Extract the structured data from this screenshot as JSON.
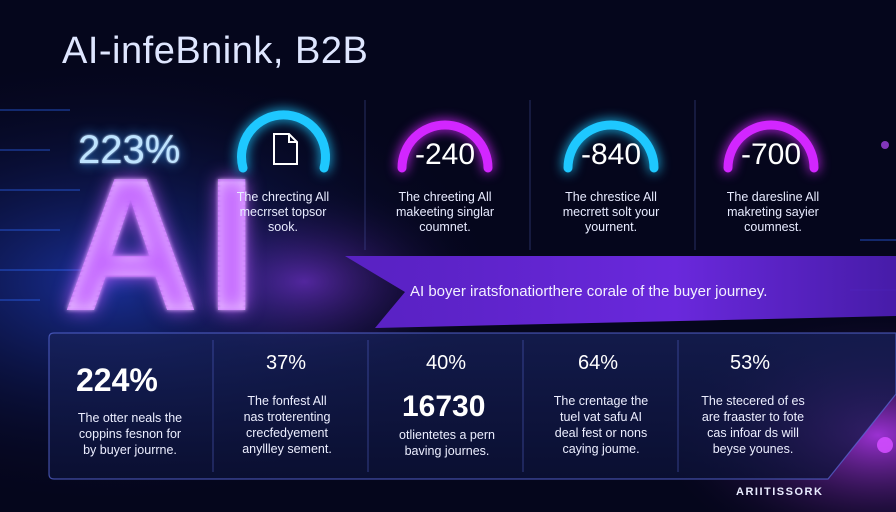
{
  "title": "AI-infeBnink, B2B",
  "hero": {
    "percent": "223%",
    "letters": "AI"
  },
  "gauges": [
    {
      "value": "",
      "icon": "document-icon",
      "color": "#1ec8ff",
      "caption": [
        "The chrecting All",
        "mecrrset topsor",
        "sook."
      ]
    },
    {
      "value": "-240",
      "color": "#d226ff",
      "caption": [
        "The chreeting All",
        "makeeting singlar",
        "coumnet."
      ]
    },
    {
      "value": "-840",
      "color": "#1ec8ff",
      "caption": [
        "The chrestice All",
        "mecrrett solt your",
        "yournent."
      ]
    },
    {
      "value": "-700",
      "color": "#d226ff",
      "caption": [
        "The daresline All",
        "makreting sayier",
        "coumnest."
      ]
    }
  ],
  "banner": "AI boyer iratsfonatiorthere corale of the buyer journey.",
  "stats": [
    {
      "top": "224%",
      "caption": [
        "The otter neals the",
        "coppins fesnon for",
        "by buyer jourrne."
      ]
    },
    {
      "top": "37%",
      "caption": [
        "The fonfest All",
        "nas troterenting",
        "crecfedyement",
        "anyllley sement."
      ]
    },
    {
      "top": "40%",
      "big": "16730",
      "caption": [
        "otlientetes a pern",
        "baving journes."
      ]
    },
    {
      "top": "64%",
      "caption": [
        "The crentage the",
        "tuel vat safu AI",
        "deal fest or nons",
        "caying joume."
      ]
    },
    {
      "top": "53%",
      "caption": [
        "The stecered of es",
        "are fraaster to fote",
        "cas infoar ds will",
        "beyse younes."
      ]
    }
  ],
  "logo": "ARIITISSORK",
  "colors": {
    "cyan": "#1ec8ff",
    "magenta": "#d226ff",
    "purple": "#7a2ee0",
    "navy": "#05061c"
  }
}
